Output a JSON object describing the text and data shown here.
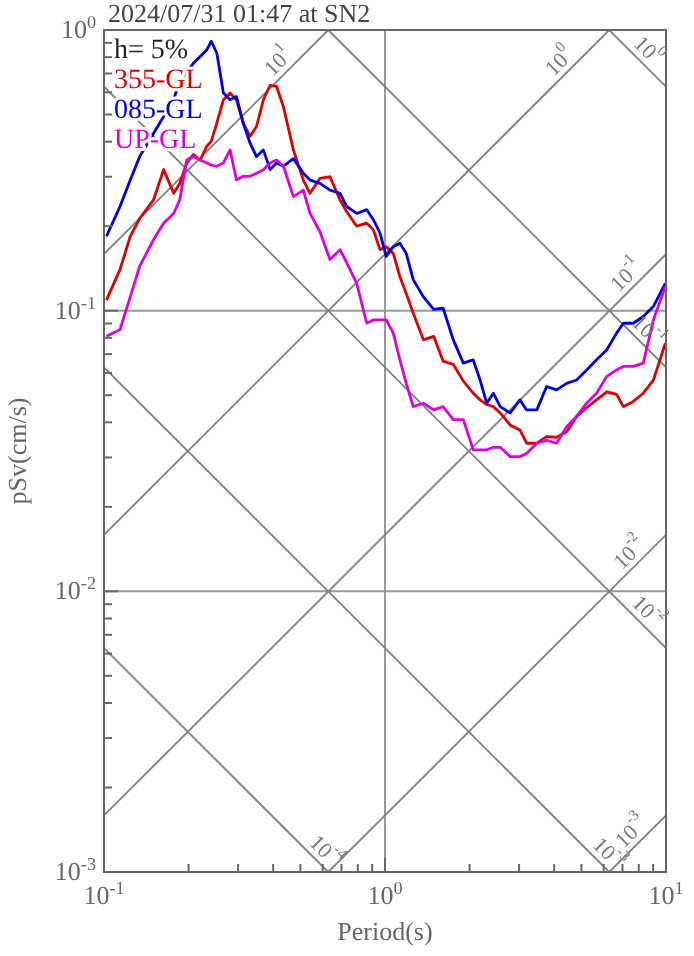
{
  "chart_data": {
    "type": "line",
    "title": "2024/07/31 01:47 at SN2",
    "xlabel": "Period(s)",
    "ylabel": "pSv(cm/s)",
    "log": "xy",
    "grid": true,
    "legend": "top left",
    "xlim": [
      0.1,
      10
    ],
    "ylim": [
      0.001,
      1
    ],
    "xticks": [
      {
        "value": 0.1,
        "label": "10$^{-1}$"
      },
      {
        "value": 0.2,
        "label": null
      },
      {
        "value": 0.3,
        "label": null
      },
      {
        "value": 0.4,
        "label": null
      },
      {
        "value": 0.5,
        "label": null
      },
      {
        "value": 0.6,
        "label": null
      },
      {
        "value": 0.7,
        "label": null
      },
      {
        "value": 0.8,
        "label": null
      },
      {
        "value": 0.9,
        "label": null
      },
      {
        "value": 1,
        "label": "10$^{0}$"
      },
      {
        "value": 2,
        "label": null
      },
      {
        "value": 3,
        "label": null
      },
      {
        "value": 4,
        "label": null
      },
      {
        "value": 5,
        "label": null
      },
      {
        "value": 6,
        "label": null
      },
      {
        "value": 7,
        "label": null
      },
      {
        "value": 8,
        "label": null
      },
      {
        "value": 9,
        "label": null
      },
      {
        "value": 10,
        "label": "10$^{1}$"
      }
    ],
    "yticks": [
      {
        "value": 0.001,
        "label": "10$^{-3}$"
      },
      {
        "value": 0.002,
        "label": null
      },
      {
        "value": 0.003,
        "label": null
      },
      {
        "value": 0.004,
        "label": null
      },
      {
        "value": 0.005,
        "label": null
      },
      {
        "value": 0.006,
        "label": null
      },
      {
        "value": 0.007,
        "label": null
      },
      {
        "value": 0.008,
        "label": null
      },
      {
        "value": 0.009,
        "label": null
      },
      {
        "value": 0.01,
        "label": "10$^{-2}$"
      },
      {
        "value": 0.02,
        "label": null
      },
      {
        "value": 0.03,
        "label": null
      },
      {
        "value": 0.04,
        "label": null
      },
      {
        "value": 0.05,
        "label": null
      },
      {
        "value": 0.06,
        "label": null
      },
      {
        "value": 0.07,
        "label": null
      },
      {
        "value": 0.08,
        "label": null
      },
      {
        "value": 0.09,
        "label": null
      },
      {
        "value": 0.1,
        "label": "10$^{-1}$"
      },
      {
        "value": 0.2,
        "label": null
      },
      {
        "value": 0.3,
        "label": null
      },
      {
        "value": 0.4,
        "label": null
      },
      {
        "value": 0.5,
        "label": null
      },
      {
        "value": 0.6,
        "label": null
      },
      {
        "value": 0.7,
        "label": null
      },
      {
        "value": 0.8,
        "label": null
      },
      {
        "value": 0.9,
        "label": null
      },
      {
        "value": 1,
        "label": "10$^{0}$"
      }
    ],
    "x": [
      0.102,
      0.114,
      0.124,
      0.134,
      0.15,
      0.163,
      0.177,
      0.186,
      0.197,
      0.208,
      0.22,
      0.232,
      0.241,
      0.252,
      0.266,
      0.281,
      0.296,
      0.313,
      0.331,
      0.349,
      0.369,
      0.39,
      0.411,
      0.435,
      0.472,
      0.512,
      0.541,
      0.587,
      0.637,
      0.692,
      0.731,
      0.793,
      0.861,
      0.909,
      0.96,
      1.01,
      1.07,
      1.13,
      1.19,
      1.26,
      1.37,
      1.49,
      1.61,
      1.75,
      1.9,
      2.06,
      2.18,
      2.3,
      2.43,
      2.57,
      2.79,
      3.02,
      3.19,
      3.47,
      3.76,
      4.08,
      4.43,
      4.81,
      5.22,
      5.66,
      6.15,
      6.67,
      7.05,
      7.65,
      8.3,
      9.02,
      9.95
    ],
    "series": [
      {
        "color": "#808080",
        "x": [
          0.1,
          0.628
        ],
        "values": [
          0.159,
          1
        ]
      },
      {
        "color": "#808080",
        "x": [
          0.1,
          6.28
        ],
        "values": [
          0.0159,
          1
        ]
      },
      {
        "color": "#808080",
        "x": [
          0.1,
          10
        ],
        "values": [
          0.00159,
          0.159
        ]
      },
      {
        "color": "#808080",
        "x": [
          0.628,
          10
        ],
        "values": [
          0.001,
          0.0159
        ]
      },
      {
        "color": "#808080",
        "x": [
          6.28,
          10
        ],
        "values": [
          0.001,
          0.00159
        ]
      },
      {
        "color": "#808080",
        "x": [
          6.28,
          10
        ],
        "values": [
          1,
          0.628
        ]
      },
      {
        "color": "#808080",
        "x": [
          0.628,
          10
        ],
        "values": [
          1,
          0.0628
        ]
      },
      {
        "color": "#808080",
        "x": [
          0.1,
          10
        ],
        "values": [
          0.628,
          0.00628
        ]
      },
      {
        "color": "#808080",
        "x": [
          0.1,
          6.28
        ],
        "values": [
          0.0628,
          0.001
        ]
      },
      {
        "color": "#808080",
        "x": [
          0.1,
          0.628
        ],
        "values": [
          0.00628,
          0.001
        ]
      },
      {
        "name": "355-GL",
        "color": "#dd0000",
        "values": [
          0.109,
          0.14,
          0.184,
          0.213,
          0.248,
          0.318,
          0.262,
          0.284,
          0.336,
          0.36,
          0.344,
          0.385,
          0.402,
          0.466,
          0.564,
          0.596,
          0.564,
          0.466,
          0.418,
          0.453,
          0.564,
          0.635,
          0.63,
          0.533,
          0.374,
          0.292,
          0.262,
          0.296,
          0.3,
          0.248,
          0.225,
          0.2,
          0.205,
          0.194,
          0.165,
          0.169,
          0.16,
          0.132,
          0.115,
          0.098,
          0.0787,
          0.081,
          0.0661,
          0.0643,
          0.0561,
          0.0508,
          0.0481,
          0.0463,
          0.0455,
          0.0432,
          0.0391,
          0.0376,
          0.0337,
          0.0337,
          0.0356,
          0.0354,
          0.037,
          0.042,
          0.0451,
          0.0481,
          0.0514,
          0.0503,
          0.0455,
          0.0475,
          0.0508,
          0.0566,
          0.0766
        ]
      },
      {
        "name": "085-GL",
        "color": "#0000dd",
        "values": [
          0.184,
          0.235,
          0.292,
          0.354,
          0.428,
          0.492,
          0.564,
          0.665,
          0.702,
          0.762,
          0.805,
          0.849,
          0.912,
          0.828,
          0.596,
          0.564,
          0.579,
          0.466,
          0.395,
          0.354,
          0.374,
          0.318,
          0.336,
          0.327,
          0.348,
          0.309,
          0.292,
          0.284,
          0.269,
          0.262,
          0.235,
          0.222,
          0.229,
          0.211,
          0.189,
          0.156,
          0.169,
          0.174,
          0.16,
          0.129,
          0.112,
          0.101,
          0.102,
          0.0787,
          0.065,
          0.0668,
          0.0566,
          0.0468,
          0.0508,
          0.0455,
          0.0432,
          0.0481,
          0.0443,
          0.0443,
          0.0537,
          0.0522,
          0.0551,
          0.0566,
          0.0615,
          0.0668,
          0.0724,
          0.0832,
          0.0902,
          0.0902,
          0.0953,
          0.1035,
          0.125
        ]
      },
      {
        "name": "UP-GL",
        "color": "#dd00dd",
        "values": [
          0.081,
          0.0855,
          0.112,
          0.144,
          0.179,
          0.205,
          0.222,
          0.248,
          0.344,
          0.354,
          0.344,
          0.336,
          0.33,
          0.327,
          0.336,
          0.374,
          0.292,
          0.301,
          0.301,
          0.309,
          0.318,
          0.336,
          0.344,
          0.327,
          0.255,
          0.269,
          0.222,
          0.191,
          0.152,
          0.165,
          0.148,
          0.125,
          0.0902,
          0.0927,
          0.0927,
          0.0927,
          0.0832,
          0.0668,
          0.0551,
          0.0455,
          0.0468,
          0.0443,
          0.0455,
          0.0409,
          0.0409,
          0.0319,
          0.0319,
          0.0319,
          0.0326,
          0.0326,
          0.0302,
          0.0302,
          0.031,
          0.0337,
          0.0345,
          0.0337,
          0.0386,
          0.042,
          0.0468,
          0.0508,
          0.0582,
          0.0615,
          0.0633,
          0.0633,
          0.065,
          0.0927,
          0.122
        ]
      }
    ],
    "annotations": [
      "h= 5%",
      {
        "text": "10$^{1}$",
        "x": 0.45,
        "y": 0.716
      },
      {
        "text": "10$^{0}$",
        "x": 4.5,
        "y": 0.716
      },
      {
        "text": "10$^{0}$",
        "x": 8,
        "y": 0.785
      },
      {
        "text": "10$^{-1}$",
        "x": 7.8,
        "y": 0.124
      },
      {
        "text": "10$^{-1}$",
        "x": 8,
        "y": 0.0785
      },
      {
        "text": "10$^{-2}$",
        "x": 8,
        "y": 0.0127
      },
      {
        "text": "10$^{-2}$",
        "x": 8,
        "y": 0.00785
      },
      {
        "text": "10$^{-4}$",
        "x": 0.57,
        "y": 0.0011
      },
      {
        "text": "10$^{-3}$",
        "x": 5.8,
        "y": 0.00108
      },
      {
        "text": "10$^{-3}$",
        "x": 8.1,
        "y": 0.00129
      }
    ]
  }
}
